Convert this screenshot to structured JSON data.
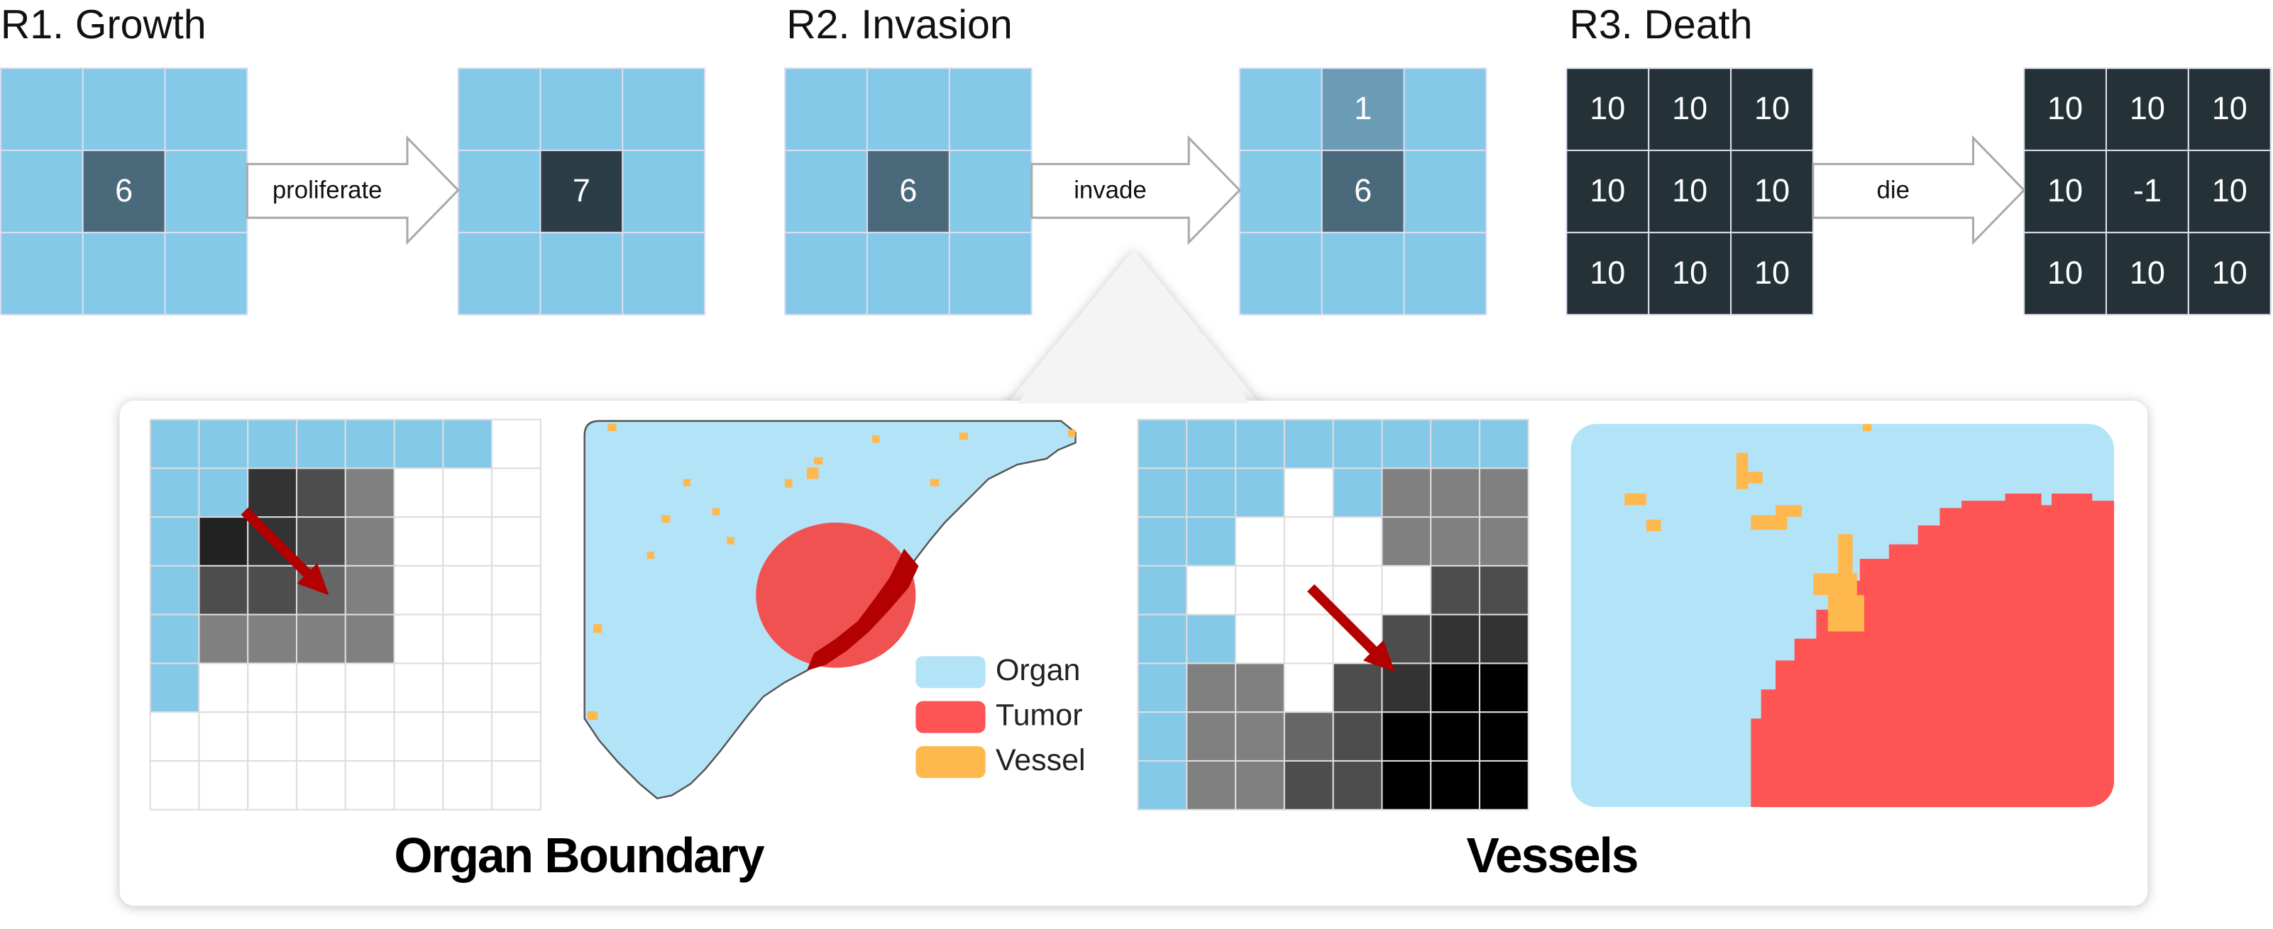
{
  "rules": [
    {
      "title": "R1. Growth",
      "action": "proliferate",
      "before": [
        [
          null,
          null,
          null
        ],
        [
          null,
          6,
          null
        ],
        [
          null,
          null,
          null
        ]
      ],
      "after": [
        [
          null,
          null,
          null
        ],
        [
          null,
          7,
          null
        ],
        [
          null,
          null,
          null
        ]
      ]
    },
    {
      "title": "R2. Invasion",
      "action": "invade",
      "before": [
        [
          null,
          null,
          null
        ],
        [
          null,
          6,
          null
        ],
        [
          null,
          null,
          null
        ]
      ],
      "after": [
        [
          null,
          1,
          null
        ],
        [
          null,
          6,
          null
        ],
        [
          null,
          null,
          null
        ]
      ]
    },
    {
      "title": "R3. Death",
      "action": "die",
      "before": [
        [
          10,
          10,
          10
        ],
        [
          10,
          10,
          10
        ],
        [
          10,
          10,
          10
        ]
      ],
      "after": [
        [
          10,
          10,
          10
        ],
        [
          10,
          -1,
          10
        ],
        [
          10,
          10,
          10
        ]
      ]
    }
  ],
  "legend": [
    "Organ",
    "Tumor",
    "Vessel"
  ],
  "captions": [
    "Organ Boundary",
    "Vessels"
  ]
}
